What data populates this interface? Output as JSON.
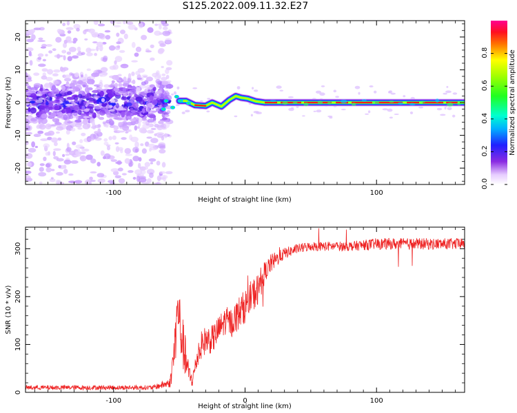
{
  "title": "S125.2022.009.11.32.E27",
  "chart_data": [
    {
      "type": "heatmap",
      "xlabel": "Height of straight line (km)",
      "ylabel": "Frequency (Hz)",
      "xlim": [
        -167,
        167
      ],
      "ylim": [
        -25,
        25
      ],
      "xticks": [
        -100,
        0,
        100
      ],
      "xtick_labels": [
        "-100",
        "",
        "100"
      ],
      "yticks": [
        -20,
        -10,
        0,
        10,
        20
      ],
      "ytick_labels": [
        "-20",
        "-10",
        "0",
        "10",
        "20"
      ],
      "colorbar": {
        "label": "Normalized spectral amplitude",
        "range": [
          0,
          1
        ],
        "ticks": [
          0,
          0.2,
          0.4,
          0.6,
          0.8
        ],
        "tick_labels": [
          "0.0",
          "0.2",
          "0.4",
          "0.6",
          "0.8"
        ],
        "colormap": "rainbow (white-violet-blue-cyan-green-yellow-red-magenta)"
      },
      "ridge": [
        {
          "x": -50,
          "y": 0.5
        },
        {
          "x": -45,
          "y": 0.5
        },
        {
          "x": -38,
          "y": -0.8
        },
        {
          "x": -30,
          "y": -1.0
        },
        {
          "x": -25,
          "y": 0.0
        },
        {
          "x": -18,
          "y": -1.2
        },
        {
          "x": -12,
          "y": 0.8
        },
        {
          "x": -7,
          "y": 2.0
        },
        {
          "x": -3,
          "y": 1.5
        },
        {
          "x": 2,
          "y": 1.2
        },
        {
          "x": 8,
          "y": 0.4
        },
        {
          "x": 15,
          "y": 0
        },
        {
          "x": 167,
          "y": 0
        }
      ]
    },
    {
      "type": "line",
      "xlabel": "Height of straight line (km)",
      "ylabel": "SNR (10 * v/v)",
      "xlim": [
        -167,
        167
      ],
      "ylim": [
        0,
        345
      ],
      "xticks": [
        -100,
        0,
        100
      ],
      "xtick_labels": [
        "-100",
        "0",
        "100"
      ],
      "yticks": [
        0,
        100,
        200,
        300
      ],
      "ytick_labels": [
        "0",
        "100",
        "200",
        "300"
      ],
      "series": [
        {
          "color": "#ee2222",
          "x": [
            -167,
            -70,
            -57,
            -54,
            -51,
            -49,
            -46,
            -43,
            -40,
            -35,
            -30,
            -25,
            -20,
            -15,
            -10,
            -5,
            0,
            5,
            10,
            13,
            16,
            20,
            25,
            30,
            40,
            50,
            60,
            80,
            100,
            120,
            140,
            167
          ],
          "y": [
            10,
            10,
            20,
            80,
            180,
            130,
            80,
            40,
            25,
            90,
            110,
            110,
            130,
            150,
            145,
            165,
            180,
            200,
            215,
            240,
            255,
            270,
            280,
            290,
            300,
            305,
            305,
            305,
            310,
            310,
            310,
            310
          ],
          "jitter": [
            5,
            5,
            10,
            50,
            60,
            60,
            50,
            25,
            15,
            30,
            30,
            30,
            30,
            30,
            30,
            35,
            35,
            35,
            35,
            30,
            20,
            20,
            15,
            12,
            10,
            10,
            10,
            10,
            12,
            12,
            12,
            12
          ]
        }
      ]
    }
  ]
}
